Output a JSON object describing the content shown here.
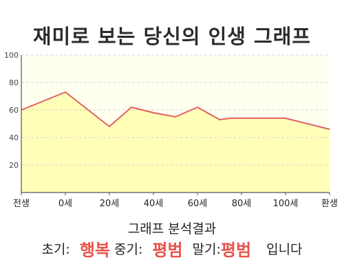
{
  "title": "재미로 보는 당신의 인생 그래프",
  "chart_data": {
    "type": "area",
    "title": "재미로 보는 당신의 인생 그래프",
    "xlabel": "",
    "ylabel": "",
    "ylim": [
      0,
      100
    ],
    "y_ticks": [
      20,
      40,
      60,
      80,
      100
    ],
    "x_tick_labels": [
      "전생",
      "0세",
      "20세",
      "40세",
      "60세",
      "80세",
      "100세",
      "환생"
    ],
    "grid": true,
    "legend": "none",
    "series": [
      {
        "x": [
          -20,
          0,
          20,
          30,
          40,
          50,
          60,
          70,
          75,
          80,
          90,
          100,
          110,
          120
        ],
        "values": [
          60,
          73,
          48,
          62,
          58,
          55,
          62,
          53,
          54,
          54,
          54,
          54,
          50,
          46
        ]
      }
    ],
    "colors": {
      "line": "#e06060",
      "fill": "#ffffb8",
      "plot_bg": "#fffff0",
      "grid": "#d4d4d4",
      "axis": "#555555"
    }
  },
  "analysis": {
    "title": "그래프 분석결과",
    "early_label": "초기:",
    "early_value": "행복",
    "middle_label": "중기:",
    "middle_value": "평범",
    "late_label": "말기:",
    "late_value": "평범",
    "ending": "입니다"
  }
}
